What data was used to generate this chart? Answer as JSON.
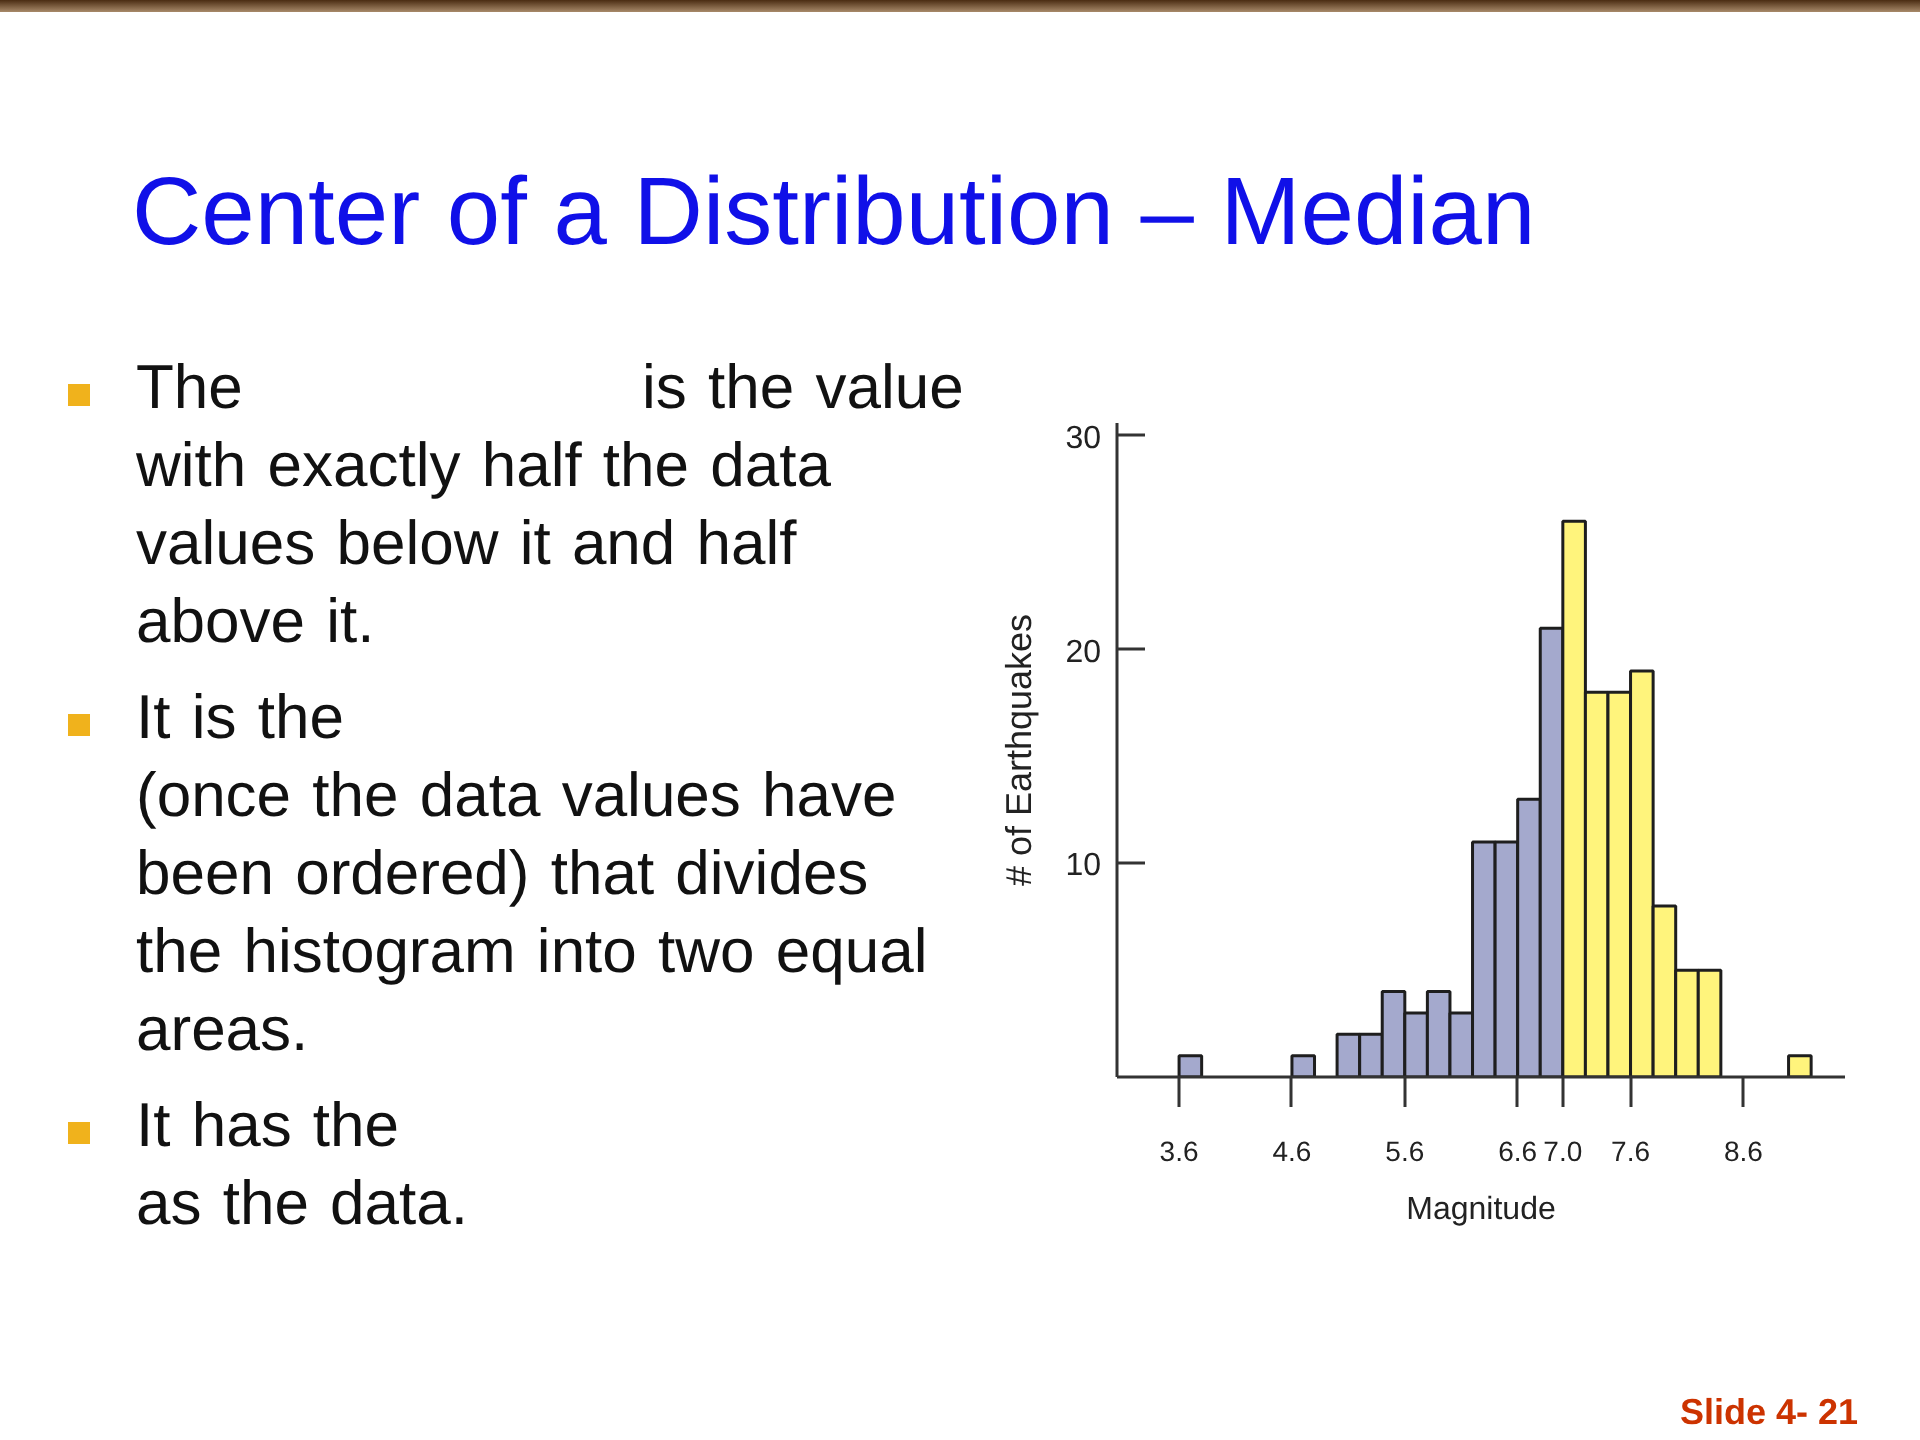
{
  "chart_data": {
    "type": "histogram",
    "title": "Center of a Distribution – Median",
    "xlabel": "Magnitude",
    "ylabel": "# of Earthquakes",
    "bins": [
      3.6,
      3.8,
      4.0,
      4.2,
      4.4,
      4.6,
      4.8,
      5.0,
      5.2,
      5.4,
      5.6,
      5.8,
      6.0,
      6.2,
      6.4,
      6.6,
      6.8,
      7.0,
      7.2,
      7.4,
      7.6,
      7.8,
      8.0,
      8.2,
      8.4,
      8.6,
      8.8,
      9.0,
      9.2
    ],
    "values": [
      1,
      0,
      0,
      0,
      0,
      1,
      0,
      2,
      2,
      4,
      3,
      4,
      3,
      11,
      11,
      13,
      21,
      26,
      18,
      18,
      19,
      8,
      5,
      5,
      0,
      0,
      0,
      1
    ],
    "colors": [
      "#a4a9cd",
      null,
      null,
      null,
      null,
      "#a4a9cd",
      null,
      "#a4a9cd",
      "#a4a9cd",
      "#a4a9cd",
      "#a4a9cd",
      "#a4a9cd",
      "#a4a9cd",
      "#a4a9cd",
      "#a4a9cd",
      "#a4a9cd",
      "#a4a9cd",
      "#fff47c",
      "#fff47c",
      "#fff47c",
      "#fff47c",
      "#fff47c",
      "#fff47c",
      "#fff47c",
      null,
      null,
      null,
      "#fff47c"
    ],
    "xlim": [
      3.05,
      9.5
    ],
    "ylim": [
      0,
      30.6
    ],
    "xticks": [
      3.6,
      4.6,
      5.6,
      6.6,
      {
        "value": 7.0,
        "label": "7.0"
      },
      7.6,
      8.6
    ],
    "yticks": [
      10,
      20,
      30
    ],
    "annotations": [
      "The\tis the value\nwith exactly half the data\nvalues below it and half\nabove it.",
      "It is the\n(once the data values have\nbeen ordered) that divides\nthe histogram into two equal\nareas.",
      "It has the\nas the data.",
      "Slide 4- 21"
    ]
  }
}
